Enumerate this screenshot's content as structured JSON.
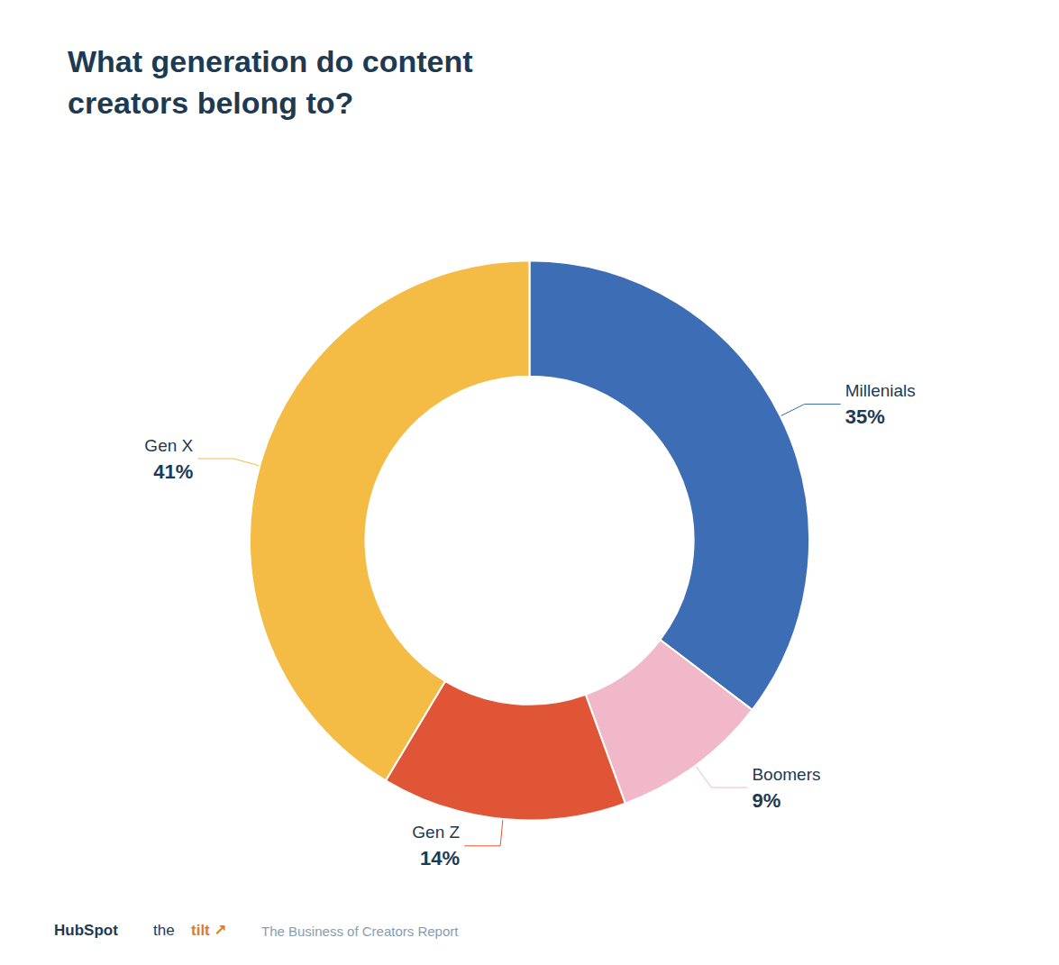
{
  "chart_data": {
    "type": "pie",
    "title": "What generation do content\ncreators belong to?",
    "categories": [
      "Millenials",
      "Boomers",
      "Gen Z",
      "Gen X"
    ],
    "values": [
      35,
      9,
      14,
      41
    ],
    "value_labels": [
      "35%",
      "9%",
      "14%",
      "41%"
    ],
    "colors": [
      "#3d6db5",
      "#f0b8c8",
      "#e05535",
      "#f5bc45"
    ],
    "data_labels": true,
    "annotations": [
      "HubSpot",
      "the",
      "tilt ↗",
      "The Business of Creators Report"
    ]
  }
}
